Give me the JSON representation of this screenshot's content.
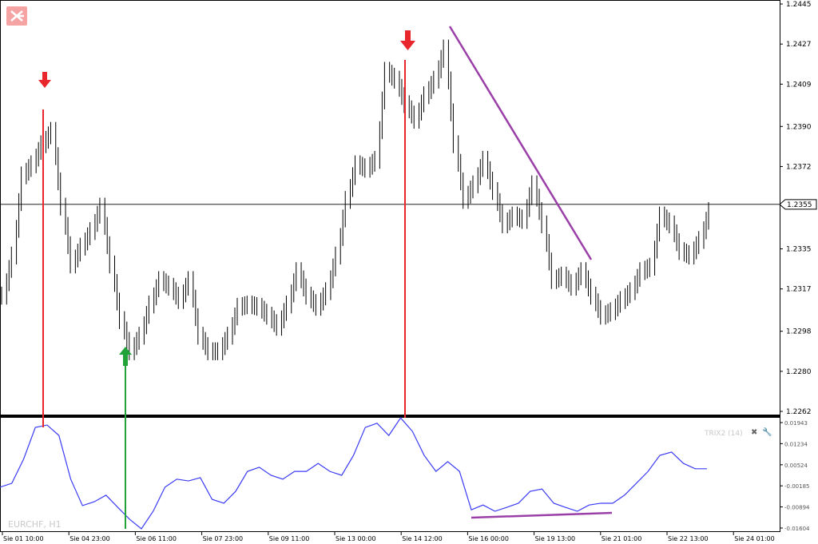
{
  "symbol_label": "EURCHF, H1",
  "indicator": {
    "label": "TRIX2 (14)",
    "close_icon": "close-icon",
    "settings_icon": "wrench-icon"
  },
  "logo": {
    "icon": "broker-logo-icon",
    "color": "#f5a3a3"
  },
  "chart_data": [
    {
      "type": "candlestick",
      "title": "",
      "ylim": [
        1.2262,
        1.2445
      ],
      "y_ticks": [
        "1.2445",
        "1.2427",
        "1.2409",
        "1.2390",
        "1.2372",
        "1.2355",
        "1.2335",
        "1.2317",
        "1.2298",
        "1.2280",
        "1.2262"
      ],
      "current_price": "1.2355",
      "x_ticks": [
        "Sie 01 10:00",
        "Sie 04 23:00",
        "Sie 06 11:00",
        "Sie 07 23:00",
        "Sie 09 11:00",
        "Sie 13 00:00",
        "Sie 14 12:00",
        "Sie 16 00:00",
        "Sie 19 13:00",
        "Sie 21 01:00",
        "Sie 22 13:00",
        "Sie 24 01:00"
      ],
      "closes": [
        1.2314,
        1.2332,
        1.2368,
        1.2373,
        1.2382,
        1.2388,
        1.2354,
        1.2328,
        1.2336,
        1.2343,
        1.2354,
        1.2328,
        1.2303,
        1.2289,
        1.2296,
        1.231,
        1.2321,
        1.2318,
        1.2312,
        1.2321,
        1.2296,
        1.2289,
        1.2289,
        1.2296,
        1.2309,
        1.231,
        1.2309,
        1.2305,
        1.23,
        1.231,
        1.2325,
        1.2314,
        1.2309,
        1.2316,
        1.2332,
        1.2357,
        1.2373,
        1.2371,
        1.2375,
        1.2415,
        1.2411,
        1.24,
        1.2393,
        1.2404,
        1.2411,
        1.2425,
        1.2382,
        1.2357,
        1.2364,
        1.2375,
        1.2361,
        1.2346,
        1.235,
        1.2348,
        1.2364,
        1.2346,
        1.2321,
        1.2323,
        1.2318,
        1.2325,
        1.2314,
        1.2305,
        1.2307,
        1.2312,
        1.2316,
        1.2325,
        1.2327,
        1.235,
        1.2346,
        1.2334,
        1.2332,
        1.2339,
        1.2352
      ],
      "colors": {
        "candles": "#000000",
        "sell_signal": "#e8262b",
        "buy_signal": "#22a33a",
        "trendline": "#9b3fa8"
      }
    },
    {
      "type": "line",
      "series": [
        {
          "name": "TRIX2 (14)",
          "color": "#3b3bf5",
          "values": [
            -0.0023,
            -0.001,
            0.0071,
            0.0178,
            0.0186,
            0.0151,
            0.0004,
            -0.0085,
            -0.0072,
            -0.005,
            -0.0091,
            -0.0131,
            -0.0163,
            -0.0104,
            -0.0023,
            0.0004,
            -0.0002,
            0.0009,
            -0.0064,
            -0.0077,
            -0.0037,
            0.003,
            0.0044,
            0.0017,
            0.0004,
            0.003,
            0.003,
            0.0057,
            0.003,
            0.0017,
            0.0084,
            0.0178,
            0.0192,
            0.0151,
            0.021,
            0.0165,
            0.0084,
            0.003,
            0.0063,
            0.003,
            -0.0099,
            -0.0083,
            -0.0104,
            -0.0091,
            -0.0077,
            -0.0037,
            -0.0029,
            -0.0077,
            -0.0091,
            -0.0104,
            -0.0083,
            -0.0077,
            -0.0077,
            -0.005,
            -0.001,
            0.003,
            0.0084,
            0.0095,
            0.0057,
            0.0039,
            0.0039
          ]
        }
      ],
      "ylim": [
        -0.01604,
        0.01943
      ],
      "y_ticks": [
        "0.01943",
        "0.01234",
        "0.00524",
        "-0.00185",
        "-0.00894",
        "-0.01604"
      ]
    }
  ]
}
